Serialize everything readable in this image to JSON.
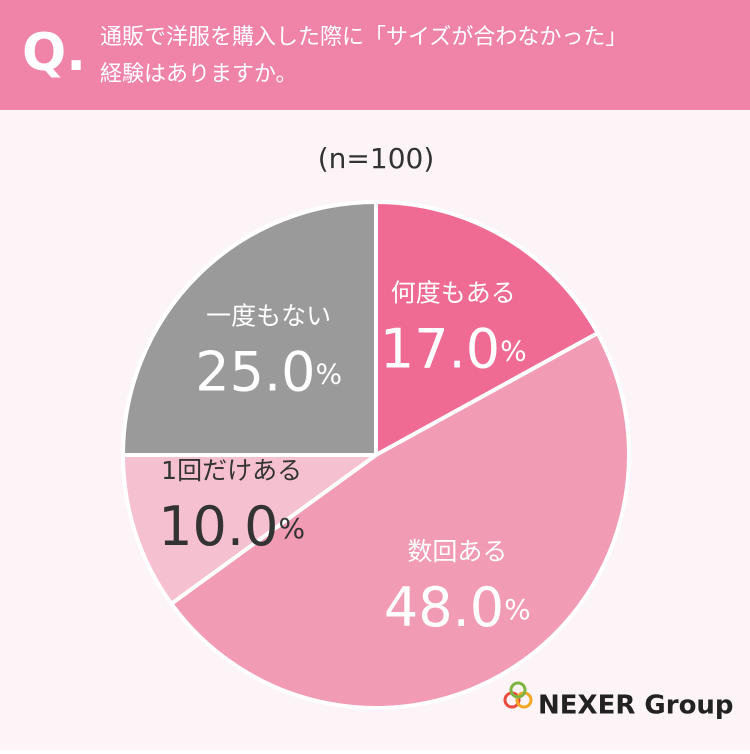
{
  "header": {
    "mark": "Q.",
    "lines": [
      "通販で洋服を購入した際に「サイズが合わなかった」",
      "経験はありますか。"
    ]
  },
  "chart_data": {
    "type": "pie",
    "subtitle": "(n=100)",
    "categories": [
      "何度もある",
      "数回ある",
      "1回だけある",
      "一度もない"
    ],
    "values": [
      17,
      48,
      10,
      25
    ],
    "value_labels": [
      "17.0%",
      "48.0%",
      "10.0%",
      "25.0%"
    ],
    "colors": [
      "#ef6b94",
      "#f29bb4",
      "#f5c0cf",
      "#9a9a9a"
    ],
    "label_colors": [
      "#ffffff",
      "#ffffff",
      "#333333",
      "#ffffff"
    ]
  },
  "logo": "NEXER Group"
}
